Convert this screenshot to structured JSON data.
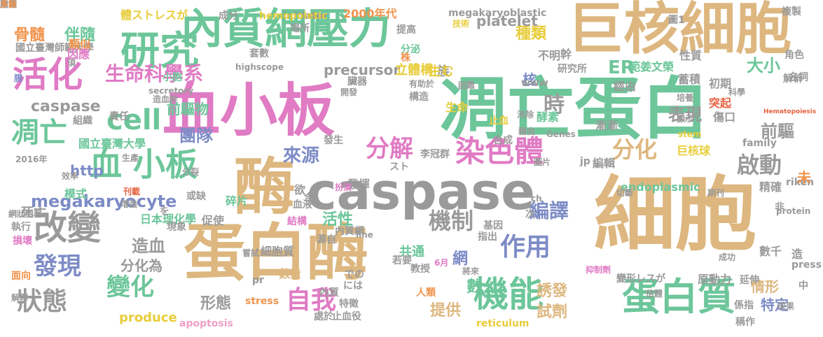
{
  "palette": {
    "tan": "#DDB77F",
    "green": "#6CC69A",
    "pink": "#E07BC4",
    "yellow": "#E8CD3A",
    "gray": "#9A9A9A",
    "blue": "#7D8CC6",
    "orange": "#F0944D",
    "red": "#E6603E",
    "lightpink": "#EFA0C7",
    "darkgray": "#767676"
  },
  "words": [
    {
      "text": "凋亡蛋白",
      "color": "green"
    },
    {
      "text": "細胞",
      "color": "tan"
    },
    {
      "text": "巨核細胞",
      "color": "tan"
    },
    {
      "text": "血小板",
      "color": "pink"
    },
    {
      "text": "蛋白酶",
      "color": "tan"
    },
    {
      "text": "caspase",
      "color": "gray"
    },
    {
      "text": "酶",
      "color": "tan"
    },
    {
      "text": "內質網壓力",
      "color": "green"
    },
    {
      "text": "研究",
      "color": "green"
    },
    {
      "text": "活化",
      "color": "pink"
    },
    {
      "text": "蛋白質",
      "color": "green"
    },
    {
      "text": "機能",
      "color": "green"
    },
    {
      "text": "血 小板",
      "color": "green"
    },
    {
      "text": "改變",
      "color": "gray"
    },
    {
      "text": "染色體",
      "color": "pink"
    },
    {
      "text": "cell",
      "color": "green"
    },
    {
      "text": "凋亡",
      "color": "green"
    },
    {
      "text": "分解",
      "color": "pink"
    },
    {
      "text": "分化",
      "color": "tan"
    },
    {
      "text": "啟動",
      "color": "gray"
    },
    {
      "text": "megakaryocyte",
      "color": "blue"
    },
    {
      "text": "發現",
      "color": "blue"
    },
    {
      "text": "狀態",
      "color": "gray"
    },
    {
      "text": "變化",
      "color": "green"
    },
    {
      "text": "自我",
      "color": "pink"
    },
    {
      "text": "作用",
      "color": "blue"
    },
    {
      "text": "機制",
      "color": "gray"
    },
    {
      "text": "生命科學系",
      "color": "pink"
    },
    {
      "text": "precursor",
      "color": "gray"
    },
    {
      "text": "caspase",
      "color": "gray"
    },
    {
      "text": "時",
      "color": "gray"
    },
    {
      "text": "表現",
      "color": "gray"
    },
    {
      "text": "骨髓",
      "color": "orange"
    },
    {
      "text": "伴隨",
      "color": "green"
    },
    {
      "text": "來源",
      "color": "blue"
    },
    {
      "text": "團隊",
      "color": "blue"
    },
    {
      "text": "前驅物",
      "color": "green"
    },
    {
      "text": "編譯",
      "color": "blue"
    },
    {
      "text": "http",
      "color": "blue"
    },
    {
      "text": "核",
      "color": "blue"
    },
    {
      "text": "ER",
      "color": "green"
    },
    {
      "text": "大小",
      "color": "green"
    },
    {
      "text": "前驅",
      "color": "gray"
    },
    {
      "text": "種類",
      "color": "yellow"
    },
    {
      "text": "數",
      "color": "green"
    },
    {
      "text": "特定",
      "color": "blue"
    },
    {
      "text": "情形",
      "color": "tan"
    },
    {
      "text": "造血",
      "color": "gray"
    },
    {
      "text": "活性",
      "color": "green"
    },
    {
      "text": "網",
      "color": "blue"
    },
    {
      "text": "誘發",
      "color": "tan"
    },
    {
      "text": "試劑",
      "color": "tan"
    },
    {
      "text": "提供",
      "color": "tan"
    },
    {
      "text": "形態",
      "color": "gray"
    },
    {
      "text": "分化為",
      "color": "gray"
    },
    {
      "text": "國立臺灣師範大學",
      "color": "gray"
    },
    {
      "text": "體ストレスが",
      "color": "yellow"
    },
    {
      "text": "國立臺灣大學",
      "color": "green"
    },
    {
      "text": "日本理化學",
      "color": "green"
    },
    {
      "text": "範姜文榮",
      "color": "green"
    },
    {
      "text": "李冠群",
      "color": "gray"
    },
    {
      "text": "突起",
      "color": "red"
    },
    {
      "text": "巨核球",
      "color": "yellow"
    },
    {
      "text": "endoplasmic",
      "color": "green"
    },
    {
      "text": "platelet",
      "color": "gray"
    },
    {
      "text": "apoptosis",
      "color": "lightpink"
    },
    {
      "text": "produce",
      "color": "yellow"
    },
    {
      "text": "stress",
      "color": "orange"
    },
    {
      "text": "reticulum",
      "color": "yellow"
    },
    {
      "text": "細胞質",
      "color": "gray"
    },
    {
      "text": "數量",
      "color": "tan"
    },
    {
      "text": "內質網",
      "color": "gray"
    },
    {
      "text": "原動力",
      "color": "gray"
    },
    {
      "text": "變形レスが",
      "color": "gray"
    },
    {
      "text": "死亡",
      "color": "gray"
    },
    {
      "text": "執行",
      "color": "gray"
    },
    {
      "text": "損壞",
      "color": "pink"
    },
    {
      "text": "生命",
      "color": "yellow"
    },
    {
      "text": "責任",
      "color": "gray"
    },
    {
      "text": "組織",
      "color": "gray"
    },
    {
      "text": "酵素",
      "color": "green"
    },
    {
      "text": "漸漸",
      "color": "gray"
    },
    {
      "text": "傷口",
      "color": "gray"
    },
    {
      "text": "蓄積",
      "color": "gray"
    },
    {
      "text": "初期",
      "color": "gray"
    },
    {
      "text": "解析",
      "color": "gray"
    },
    {
      "text": "研究所",
      "color": "gray"
    },
    {
      "text": "成分",
      "color": "gray"
    },
    {
      "text": "2000年代",
      "color": "orange"
    },
    {
      "text": "initiator",
      "color": "gray"
    },
    {
      "text": "hemopoietic",
      "color": "yellow"
    },
    {
      "text": "megakaryoblastic",
      "color": "gray"
    },
    {
      "text": "highscope",
      "color": "gray"
    },
    {
      "text": "secretory",
      "color": "gray"
    },
    {
      "text": "stem",
      "color": "yellow"
    },
    {
      "text": "Hematopoiesis",
      "color": "red"
    },
    {
      "text": "Genes",
      "color": "gray"
    },
    {
      "text": "family",
      "color": "gray"
    },
    {
      "text": "protein",
      "color": "gray"
    },
    {
      "text": "riken",
      "color": "gray"
    },
    {
      "text": "press",
      "color": "gray"
    },
    {
      "text": "www",
      "color": "gray"
    },
    {
      "text": "jp",
      "color": "gray"
    },
    {
      "text": "ch",
      "color": "gray"
    },
    {
      "text": "pr",
      "color": "gray"
    },
    {
      "text": "line",
      "color": "gray"
    },
    {
      "text": "には",
      "color": "gray"
    },
    {
      "text": "での",
      "color": "gray"
    },
    {
      "text": "を",
      "color": "gray"
    },
    {
      "text": "スト",
      "color": "gray"
    },
    {
      "text": "類似",
      "color": "orange"
    },
    {
      "text": "因應",
      "color": "pink"
    },
    {
      "text": "族",
      "color": "gray"
    },
    {
      "text": "立體構",
      "color": "yellow"
    },
    {
      "text": "生む",
      "color": "yellow"
    },
    {
      "text": "小胞",
      "color": "green"
    },
    {
      "text": "不明",
      "color": "gray"
    },
    {
      "text": "幹",
      "color": "gray"
    },
    {
      "text": "性質",
      "color": "gray"
    },
    {
      "text": "經由",
      "color": "gray"
    },
    {
      "text": "構造",
      "color": "gray"
    },
    {
      "text": "止血",
      "color": "yellow"
    },
    {
      "text": "發揮",
      "color": "gray"
    },
    {
      "text": "欲",
      "color": "gray"
    },
    {
      "text": "共通",
      "color": "green"
    },
    {
      "text": "含",
      "color": "gray"
    },
    {
      "text": "編輯",
      "color": "gray"
    },
    {
      "text": "模式",
      "color": "green"
    },
    {
      "text": "或缺",
      "color": "gray"
    },
    {
      "text": "碎片",
      "color": "green"
    },
    {
      "text": "促使",
      "color": "gray"
    },
    {
      "text": "現象",
      "color": "gray"
    },
    {
      "text": "血液",
      "color": "gray"
    },
    {
      "text": "源自",
      "color": "gray"
    },
    {
      "text": "指出",
      "color": "gray"
    },
    {
      "text": "基因",
      "color": "gray"
    },
    {
      "text": "若要",
      "color": "gray"
    },
    {
      "text": "教授",
      "color": "gray"
    },
    {
      "text": "特徵",
      "color": "gray"
    },
    {
      "text": "人類",
      "color": "orange"
    },
    {
      "text": "處於",
      "color": "gray"
    },
    {
      "text": "止血役",
      "color": "gray"
    },
    {
      "text": "內質",
      "color": "gray"
    },
    {
      "text": "係指",
      "color": "gray"
    },
    {
      "text": "稱作",
      "color": "gray"
    },
    {
      "text": "精確",
      "color": "gray"
    },
    {
      "text": "數千",
      "color": "gray"
    },
    {
      "text": "造",
      "color": "gray"
    },
    {
      "text": "未",
      "color": "orange"
    },
    {
      "text": "非",
      "color": "gray"
    },
    {
      "text": "中",
      "color": "gray"
    },
    {
      "text": "面向",
      "color": "orange"
    },
    {
      "text": "解釋",
      "color": "gray"
    },
    {
      "text": "圖1",
      "color": "gray"
    },
    {
      "text": "名詞",
      "color": "gray"
    },
    {
      "text": "角色",
      "color": "gray"
    },
    {
      "text": "複製",
      "color": "gray"
    },
    {
      "text": "技術",
      "color": "yellow"
    },
    {
      "text": "提高",
      "color": "gray"
    },
    {
      "text": "場所",
      "color": "gray"
    },
    {
      "text": "套數",
      "color": "gray"
    },
    {
      "text": "分泌",
      "color": "green"
    },
    {
      "text": "株",
      "color": "orange"
    },
    {
      "text": "臟器",
      "color": "gray"
    },
    {
      "text": "開發",
      "color": "gray"
    },
    {
      "text": "有助於",
      "color": "gray"
    },
    {
      "text": "困難",
      "color": "gray"
    },
    {
      "text": "造血幹",
      "color": "gray"
    },
    {
      "text": "膜",
      "color": "blue"
    },
    {
      "text": "須",
      "color": "gray"
    },
    {
      "text": "消除",
      "color": "gray"
    },
    {
      "text": "藉由",
      "color": "gray"
    },
    {
      "text": "培養",
      "color": "gray"
    },
    {
      "text": "科學",
      "color": "gray"
    },
    {
      "text": "顯示",
      "color": "gray"
    },
    {
      "text": "發生",
      "color": "gray"
    },
    {
      "text": "合成",
      "color": "gray"
    },
    {
      "text": "圖片",
      "color": "gray"
    },
    {
      "text": "分裂",
      "color": "gray"
    },
    {
      "text": "2016年",
      "color": "gray"
    },
    {
      "text": "生產",
      "color": "gray"
    },
    {
      "text": "效率",
      "color": "gray"
    },
    {
      "text": "刊載",
      "color": "red"
    },
    {
      "text": "增強",
      "color": "gray"
    },
    {
      "text": "網狀胞器",
      "color": "gray"
    },
    {
      "text": "結構",
      "color": "pink"
    },
    {
      "text": "扮演",
      "color": "pink"
    },
    {
      "text": "次",
      "color": "gray"
    },
    {
      "text": "切斷",
      "color": "gray"
    },
    {
      "text": "期刊",
      "color": "gray"
    },
    {
      "text": "嘗試",
      "color": "gray"
    },
    {
      "text": "6月",
      "color": "pink"
    },
    {
      "text": "將來",
      "color": "gray"
    },
    {
      "text": "抑制劑",
      "color": "pink"
    },
    {
      "text": "倍體",
      "color": "gray"
    },
    {
      "text": "成功",
      "color": "gray"
    },
    {
      "text": "成果",
      "color": "gray"
    },
    {
      "text": "延伸",
      "color": "gray"
    },
    {
      "text": "脂質",
      "color": "gray"
    },
    {
      "text": "簡議",
      "color": "gray"
    },
    {
      "text": "多餘",
      "color": "orange"
    }
  ]
}
